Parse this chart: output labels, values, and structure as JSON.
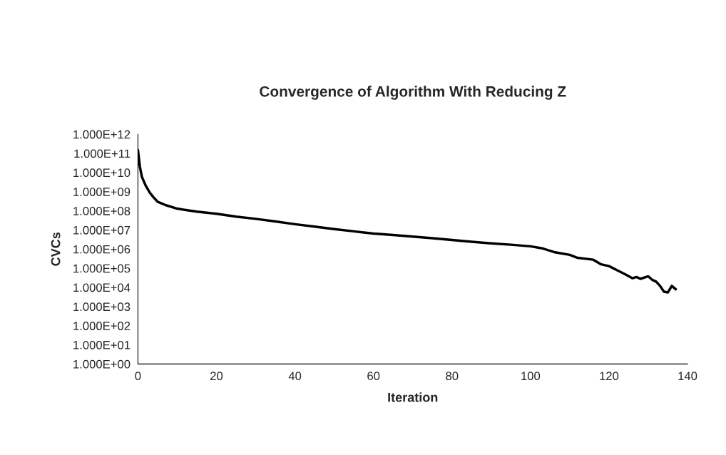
{
  "chart_data": {
    "type": "line",
    "title": "Convergence of Algorithm With Reducing Z",
    "xlabel": "Iteration",
    "ylabel": "CVCs",
    "log": "y",
    "grid": false,
    "legend": false,
    "marker": "none",
    "line_style": "solid",
    "xlim": [
      0,
      140
    ],
    "xticks": [
      0,
      20,
      40,
      60,
      80,
      100,
      120,
      140
    ],
    "ylim": [
      1,
      1000000000000
    ],
    "yticks": [
      {
        "value": 1,
        "label": "1.000E+00"
      },
      {
        "value": 10,
        "label": "1.000E+01"
      },
      {
        "value": 100,
        "label": "1.000E+02"
      },
      {
        "value": 1000,
        "label": "1.000E+03"
      },
      {
        "value": 10000,
        "label": "1.000E+04"
      },
      {
        "value": 100000,
        "label": "1.000E+05"
      },
      {
        "value": 1000000,
        "label": "1.000E+06"
      },
      {
        "value": 10000000,
        "label": "1.000E+07"
      },
      {
        "value": 100000000,
        "label": "1.000E+08"
      },
      {
        "value": 1000000000,
        "label": "1.000E+09"
      },
      {
        "value": 10000000000,
        "label": "1.000E+10"
      },
      {
        "value": 100000000000,
        "label": "1.000E+11"
      },
      {
        "value": 1000000000000,
        "label": "1.000E+12"
      }
    ],
    "series": [
      {
        "color": "#000000",
        "x": [
          0,
          0.5,
          1,
          2,
          3,
          4,
          5,
          7,
          10,
          15,
          20,
          25,
          30,
          35,
          40,
          45,
          50,
          55,
          60,
          65,
          70,
          75,
          80,
          85,
          90,
          95,
          100,
          103,
          106,
          110,
          112,
          116,
          118,
          120,
          122,
          124,
          126,
          127,
          128,
          130,
          131,
          132,
          133,
          134,
          135,
          136,
          137
        ],
        "values": [
          150000000000,
          20000000000,
          6000000000,
          2000000000,
          900000000,
          500000000,
          300000000,
          200000000,
          130000000,
          90000000,
          70000000,
          50000000,
          38000000,
          28000000,
          20000000,
          15000000,
          11000000,
          8500000,
          6500000,
          5500000,
          4500000,
          3700000,
          3000000,
          2400000,
          2000000,
          1700000,
          1400000,
          1100000,
          700000,
          500000,
          350000,
          280000,
          160000,
          130000,
          80000,
          50000,
          30000,
          35000,
          28000,
          38000,
          25000,
          20000,
          12000,
          6000,
          5500,
          12000,
          8000
        ]
      }
    ]
  }
}
